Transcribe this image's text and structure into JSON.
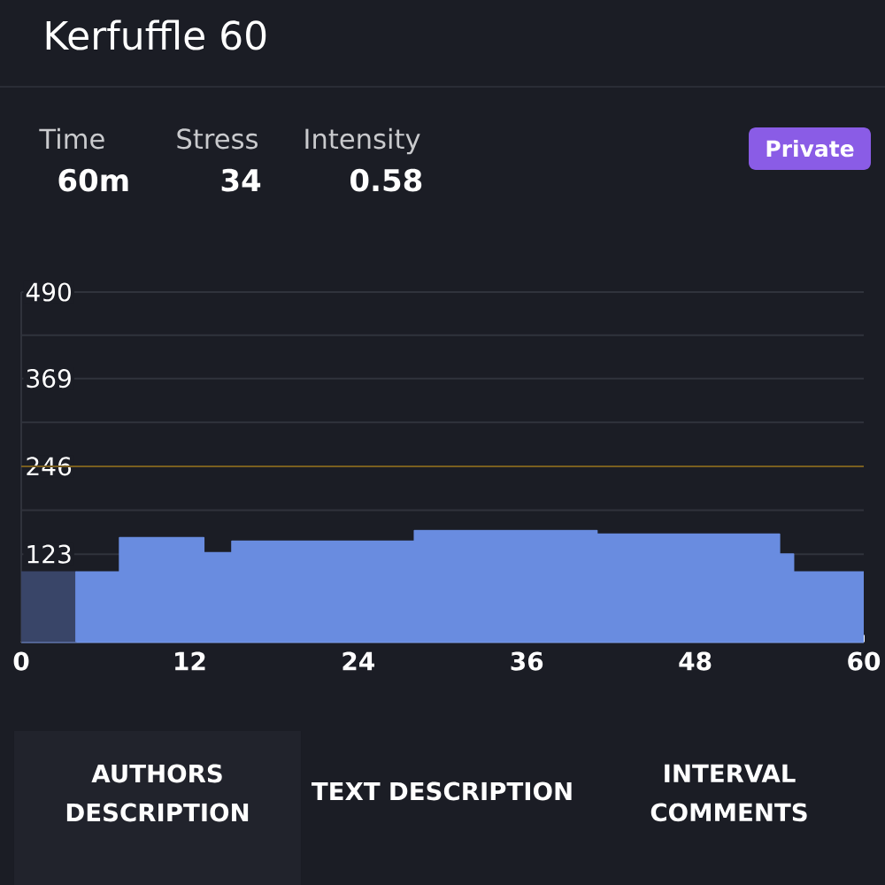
{
  "chart_data": {
    "type": "area",
    "title": "Kerfuffle 60",
    "series": [
      {
        "color": "#394568",
        "x": [
          0,
          3.9
        ],
        "values": [
          98,
          98
        ]
      },
      {
        "color": "#698CE0",
        "x": [
          3.9,
          7,
          7,
          13,
          13,
          15,
          15,
          28,
          28,
          41,
          41,
          54,
          54,
          55,
          55,
          60
        ],
        "values": [
          98,
          98,
          146,
          146,
          125,
          125,
          141,
          141,
          156,
          156,
          151,
          151,
          123,
          123,
          98,
          98
        ]
      }
    ],
    "xlim": [
      0,
      60
    ],
    "xticks": [
      0,
      12,
      24,
      36,
      48,
      60
    ],
    "ylim": [
      0,
      490
    ],
    "yticks": [
      {
        "value": 61.5,
        "label": null
      },
      123,
      {
        "value": 184.5,
        "label": null
      },
      246,
      {
        "value": 307.5,
        "label": null
      },
      369,
      {
        "value": 429.5,
        "label": null
      },
      490
    ],
    "grid": "y",
    "ref_lines": [
      {
        "axis": "y",
        "value": 246,
        "color": "#7A5F1F"
      }
    ],
    "annotations": [
      "Time",
      "60m",
      "Stress",
      "34",
      "Intensity",
      "0.58",
      "Private",
      "AUTHORS DESCRIPTION",
      "TEXT DESCRIPTION",
      "INTERVAL COMMENTS"
    ]
  }
}
